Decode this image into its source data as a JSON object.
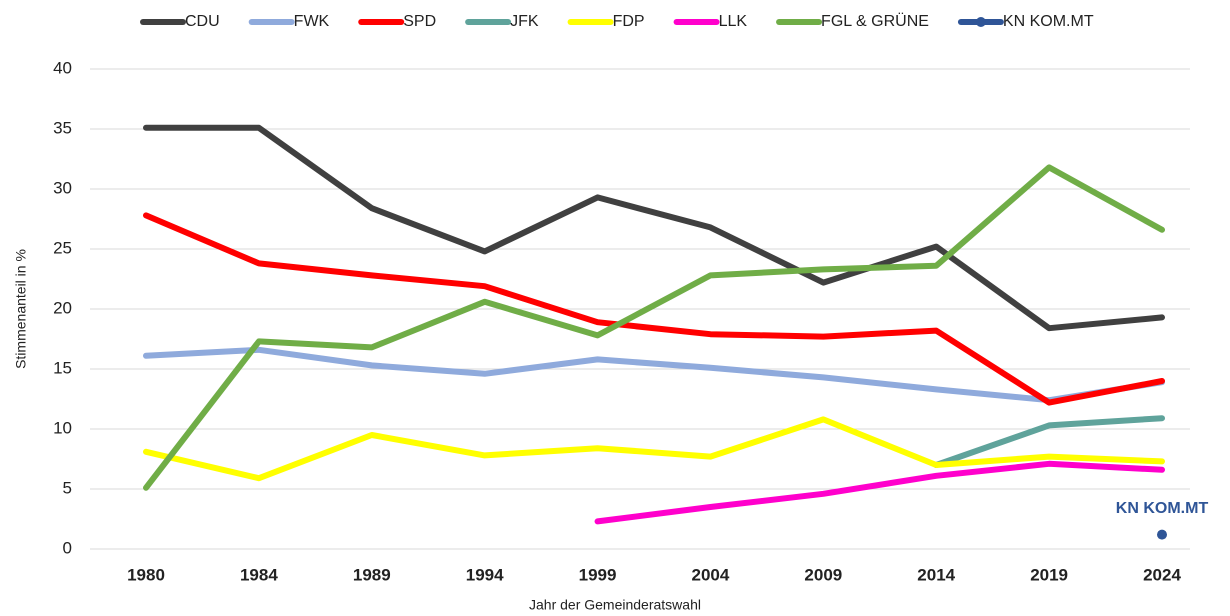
{
  "chart_data": {
    "type": "line",
    "x_label": "Jahr der Gemeinderatswahl",
    "y_label": "Stimmenanteil in %",
    "categories": [
      "1980",
      "1984",
      "1989",
      "1994",
      "1999",
      "2004",
      "2009",
      "2014",
      "2019",
      "2024"
    ],
    "ylim": [
      0,
      40
    ],
    "yticks": [
      0,
      5,
      10,
      15,
      20,
      25,
      30,
      35,
      40
    ],
    "grid": true,
    "legend": "top",
    "series": [
      {
        "name": "CDU",
        "color": "#404040",
        "values": [
          35.1,
          35.1,
          28.4,
          24.8,
          29.3,
          26.8,
          22.2,
          25.2,
          18.4,
          19.3
        ]
      },
      {
        "name": "FWK",
        "color": "#8faadc",
        "values": [
          16.1,
          16.6,
          15.3,
          14.6,
          15.8,
          15.1,
          14.3,
          13.3,
          12.4,
          13.9
        ]
      },
      {
        "name": "SPD",
        "color": "#ff0000",
        "values": [
          27.8,
          23.8,
          22.8,
          21.9,
          18.9,
          17.9,
          17.7,
          18.2,
          12.2,
          14.0
        ]
      },
      {
        "name": "JFK",
        "color": "#5fa39b",
        "values": [
          null,
          null,
          null,
          null,
          null,
          null,
          null,
          7.0,
          10.3,
          10.9
        ]
      },
      {
        "name": "FDP",
        "color": "#ffff00",
        "values": [
          8.1,
          5.9,
          9.5,
          7.8,
          8.4,
          7.7,
          10.8,
          7.0,
          7.7,
          7.3
        ]
      },
      {
        "name": "LLK",
        "color": "#ff00cc",
        "values": [
          null,
          null,
          null,
          null,
          2.3,
          3.5,
          4.6,
          6.1,
          7.1,
          6.6
        ]
      },
      {
        "name": "FGL & GRÜNE",
        "color": "#70ad47",
        "values": [
          5.1,
          17.3,
          16.8,
          20.6,
          17.8,
          22.8,
          23.3,
          23.6,
          31.8,
          26.6
        ]
      },
      {
        "name": "KN KOM.MT",
        "color": "#2f5597",
        "values": [
          null,
          null,
          null,
          null,
          null,
          null,
          null,
          null,
          null,
          1.2
        ],
        "marker": true
      }
    ]
  }
}
